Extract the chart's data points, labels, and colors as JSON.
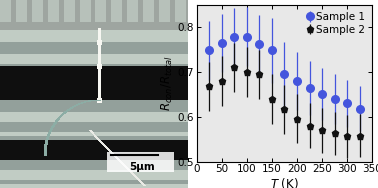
{
  "sample1_T": [
    25,
    50,
    75,
    100,
    125,
    150,
    175,
    200,
    225,
    250,
    275,
    300,
    325
  ],
  "sample1_R": [
    0.748,
    0.765,
    0.778,
    0.779,
    0.763,
    0.748,
    0.695,
    0.68,
    0.665,
    0.65,
    0.64,
    0.63,
    0.618
  ],
  "sample1_err": [
    0.065,
    0.065,
    0.065,
    0.065,
    0.065,
    0.072,
    0.072,
    0.065,
    0.06,
    0.058,
    0.055,
    0.052,
    0.05
  ],
  "sample2_T": [
    25,
    50,
    75,
    100,
    125,
    150,
    175,
    200,
    225,
    250,
    275,
    300,
    325
  ],
  "sample2_R": [
    0.668,
    0.68,
    0.71,
    0.7,
    0.695,
    0.64,
    0.617,
    0.596,
    0.58,
    0.57,
    0.563,
    0.557,
    0.558
  ],
  "sample2_err": [
    0.055,
    0.055,
    0.055,
    0.055,
    0.055,
    0.055,
    0.055,
    0.055,
    0.05,
    0.05,
    0.048,
    0.048,
    0.048
  ],
  "xlabel": "T (K)",
  "ylabel": "R_{con}/R_{total}",
  "xlim": [
    0,
    350
  ],
  "ylim": [
    0.5,
    0.85
  ],
  "yticks": [
    0.5,
    0.6,
    0.7,
    0.8
  ],
  "xticks": [
    0,
    50,
    100,
    150,
    200,
    250,
    300,
    350
  ],
  "sample1_color": "#4455dd",
  "sample2_color": "#111111",
  "plot_bg": "#e8e8e8",
  "sem_light": [
    0.76,
    0.8,
    0.77
  ],
  "sem_mid": [
    0.58,
    0.63,
    0.61
  ],
  "sem_dark": [
    0.06,
    0.06,
    0.06
  ],
  "sem_comb": [
    0.62,
    0.65,
    0.63
  ],
  "sem_comb_bg": [
    0.72,
    0.76,
    0.73
  ]
}
